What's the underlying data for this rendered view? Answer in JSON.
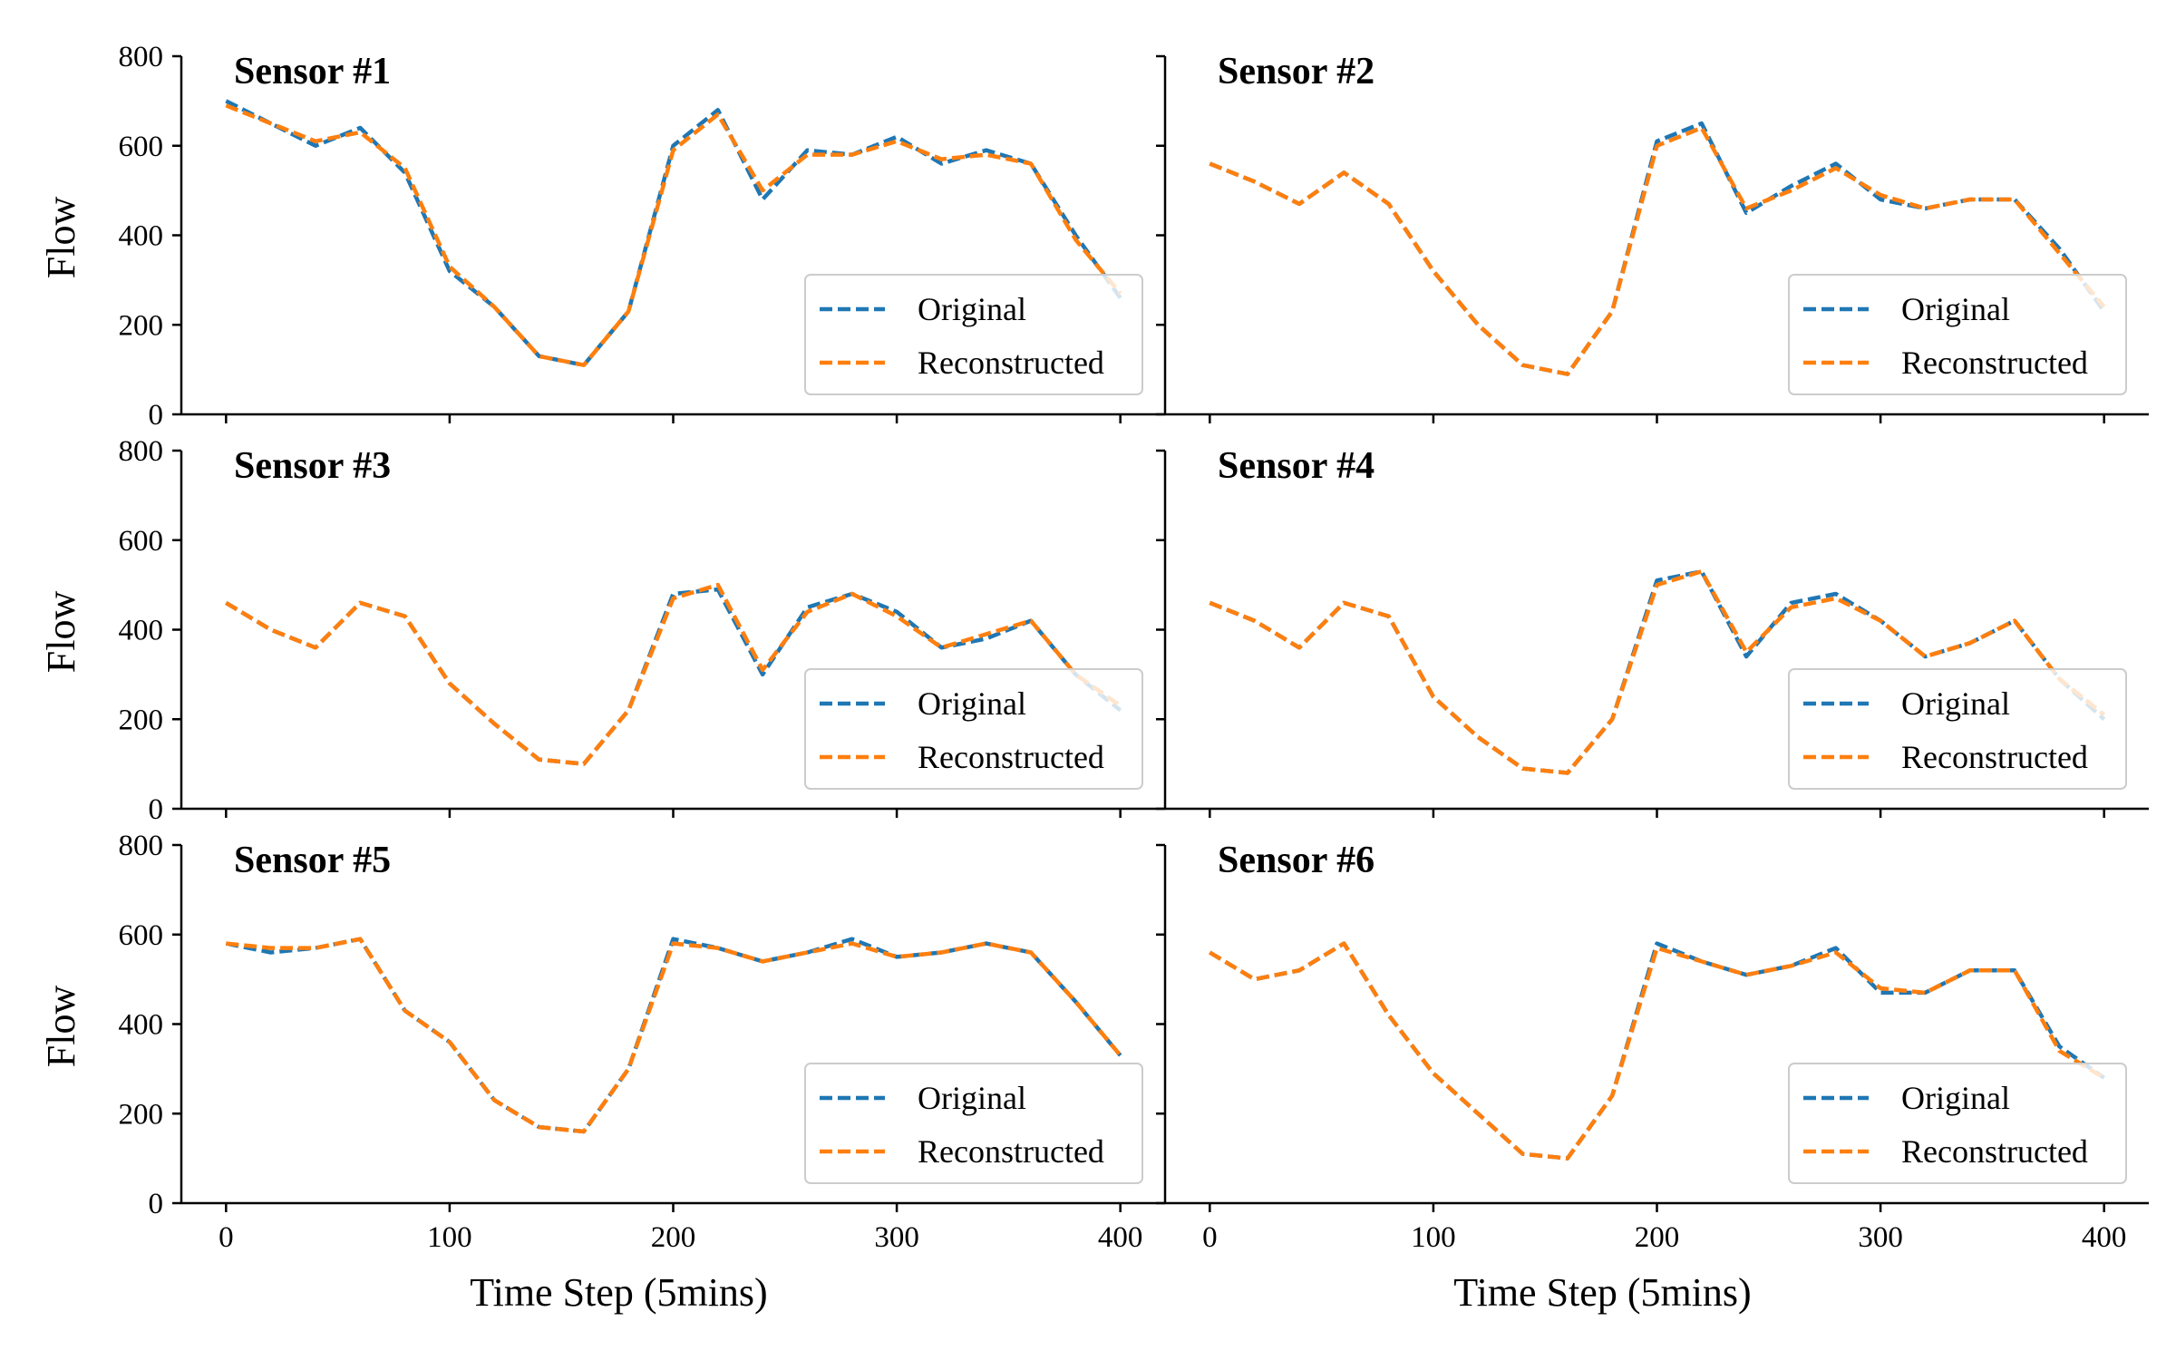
{
  "colors": {
    "original": "#1f77b4",
    "reconstructed": "#ff7f0e"
  },
  "legend": {
    "original": "Original",
    "reconstructed": "Reconstructed",
    "placement": "lower-right"
  },
  "axes": {
    "xlabel": "Time Step (5mins)",
    "ylabel": "Flow",
    "xlim": [
      -20,
      420
    ],
    "ylim": [
      0,
      800
    ],
    "x_ticks": [
      "0",
      "100",
      "200",
      "300",
      "400"
    ],
    "y_ticks": [
      "0",
      "200",
      "400",
      "600",
      "800"
    ]
  },
  "chart_data": [
    {
      "type": "line",
      "title": "Sensor #1",
      "x": [
        0,
        20,
        40,
        60,
        80,
        100,
        120,
        140,
        160,
        180,
        200,
        220,
        240,
        260,
        280,
        300,
        320,
        340,
        360,
        380,
        400
      ],
      "series": [
        {
          "name": "Original",
          "values": [
            700,
            650,
            600,
            640,
            540,
            320,
            240,
            130,
            110,
            230,
            600,
            680,
            480,
            590,
            580,
            620,
            560,
            590,
            560,
            400,
            260
          ]
        },
        {
          "name": "Reconstructed",
          "values": [
            690,
            650,
            610,
            630,
            550,
            330,
            240,
            130,
            110,
            230,
            590,
            670,
            500,
            580,
            580,
            610,
            570,
            580,
            560,
            390,
            270
          ]
        }
      ]
    },
    {
      "type": "line",
      "title": "Sensor #2",
      "x": [
        0,
        20,
        40,
        60,
        80,
        100,
        120,
        140,
        160,
        180,
        200,
        220,
        240,
        260,
        280,
        300,
        320,
        340,
        360,
        380,
        400
      ],
      "series": [
        {
          "name": "Original",
          "values": [
            560,
            520,
            470,
            540,
            470,
            320,
            200,
            110,
            90,
            230,
            610,
            650,
            450,
            510,
            560,
            480,
            460,
            480,
            480,
            370,
            230
          ]
        },
        {
          "name": "Reconstructed",
          "values": [
            560,
            520,
            470,
            540,
            470,
            320,
            200,
            110,
            90,
            230,
            600,
            640,
            460,
            500,
            550,
            490,
            460,
            480,
            480,
            360,
            240
          ]
        }
      ]
    },
    {
      "type": "line",
      "title": "Sensor #3",
      "x": [
        0,
        20,
        40,
        60,
        80,
        100,
        120,
        140,
        160,
        180,
        200,
        220,
        240,
        260,
        280,
        300,
        320,
        340,
        360,
        380,
        400
      ],
      "series": [
        {
          "name": "Original",
          "values": [
            460,
            400,
            360,
            460,
            430,
            280,
            190,
            110,
            100,
            220,
            480,
            490,
            300,
            450,
            480,
            440,
            360,
            380,
            420,
            300,
            220
          ]
        },
        {
          "name": "Reconstructed",
          "values": [
            460,
            400,
            360,
            460,
            430,
            280,
            190,
            110,
            100,
            220,
            470,
            500,
            310,
            440,
            480,
            430,
            360,
            390,
            420,
            300,
            230
          ]
        }
      ]
    },
    {
      "type": "line",
      "title": "Sensor #4",
      "x": [
        0,
        20,
        40,
        60,
        80,
        100,
        120,
        140,
        160,
        180,
        200,
        220,
        240,
        260,
        280,
        300,
        320,
        340,
        360,
        380,
        400
      ],
      "series": [
        {
          "name": "Original",
          "values": [
            460,
            420,
            360,
            460,
            430,
            250,
            160,
            90,
            80,
            200,
            510,
            530,
            340,
            460,
            480,
            420,
            340,
            370,
            420,
            290,
            200
          ]
        },
        {
          "name": "Reconstructed",
          "values": [
            460,
            420,
            360,
            460,
            430,
            250,
            160,
            90,
            80,
            200,
            500,
            530,
            350,
            450,
            470,
            420,
            340,
            370,
            420,
            290,
            210
          ]
        }
      ]
    },
    {
      "type": "line",
      "title": "Sensor #5",
      "x": [
        0,
        20,
        40,
        60,
        80,
        100,
        120,
        140,
        160,
        180,
        200,
        220,
        240,
        260,
        280,
        300,
        320,
        340,
        360,
        380,
        400
      ],
      "series": [
        {
          "name": "Original",
          "values": [
            580,
            560,
            570,
            590,
            430,
            360,
            230,
            170,
            160,
            300,
            590,
            570,
            540,
            560,
            590,
            550,
            560,
            580,
            560,
            450,
            330
          ]
        },
        {
          "name": "Reconstructed",
          "values": [
            580,
            570,
            570,
            590,
            430,
            360,
            230,
            170,
            160,
            300,
            580,
            570,
            540,
            560,
            580,
            550,
            560,
            580,
            560,
            450,
            330
          ]
        }
      ]
    },
    {
      "type": "line",
      "title": "Sensor #6",
      "x": [
        0,
        20,
        40,
        60,
        80,
        100,
        120,
        140,
        160,
        180,
        200,
        220,
        240,
        260,
        280,
        300,
        320,
        340,
        360,
        380,
        400
      ],
      "series": [
        {
          "name": "Original",
          "values": [
            560,
            500,
            520,
            580,
            420,
            290,
            200,
            110,
            100,
            240,
            580,
            540,
            510,
            530,
            570,
            470,
            470,
            520,
            520,
            350,
            280
          ]
        },
        {
          "name": "Reconstructed",
          "values": [
            560,
            500,
            520,
            580,
            420,
            290,
            200,
            110,
            100,
            240,
            570,
            540,
            510,
            530,
            560,
            480,
            470,
            520,
            520,
            340,
            280
          ]
        }
      ]
    }
  ]
}
